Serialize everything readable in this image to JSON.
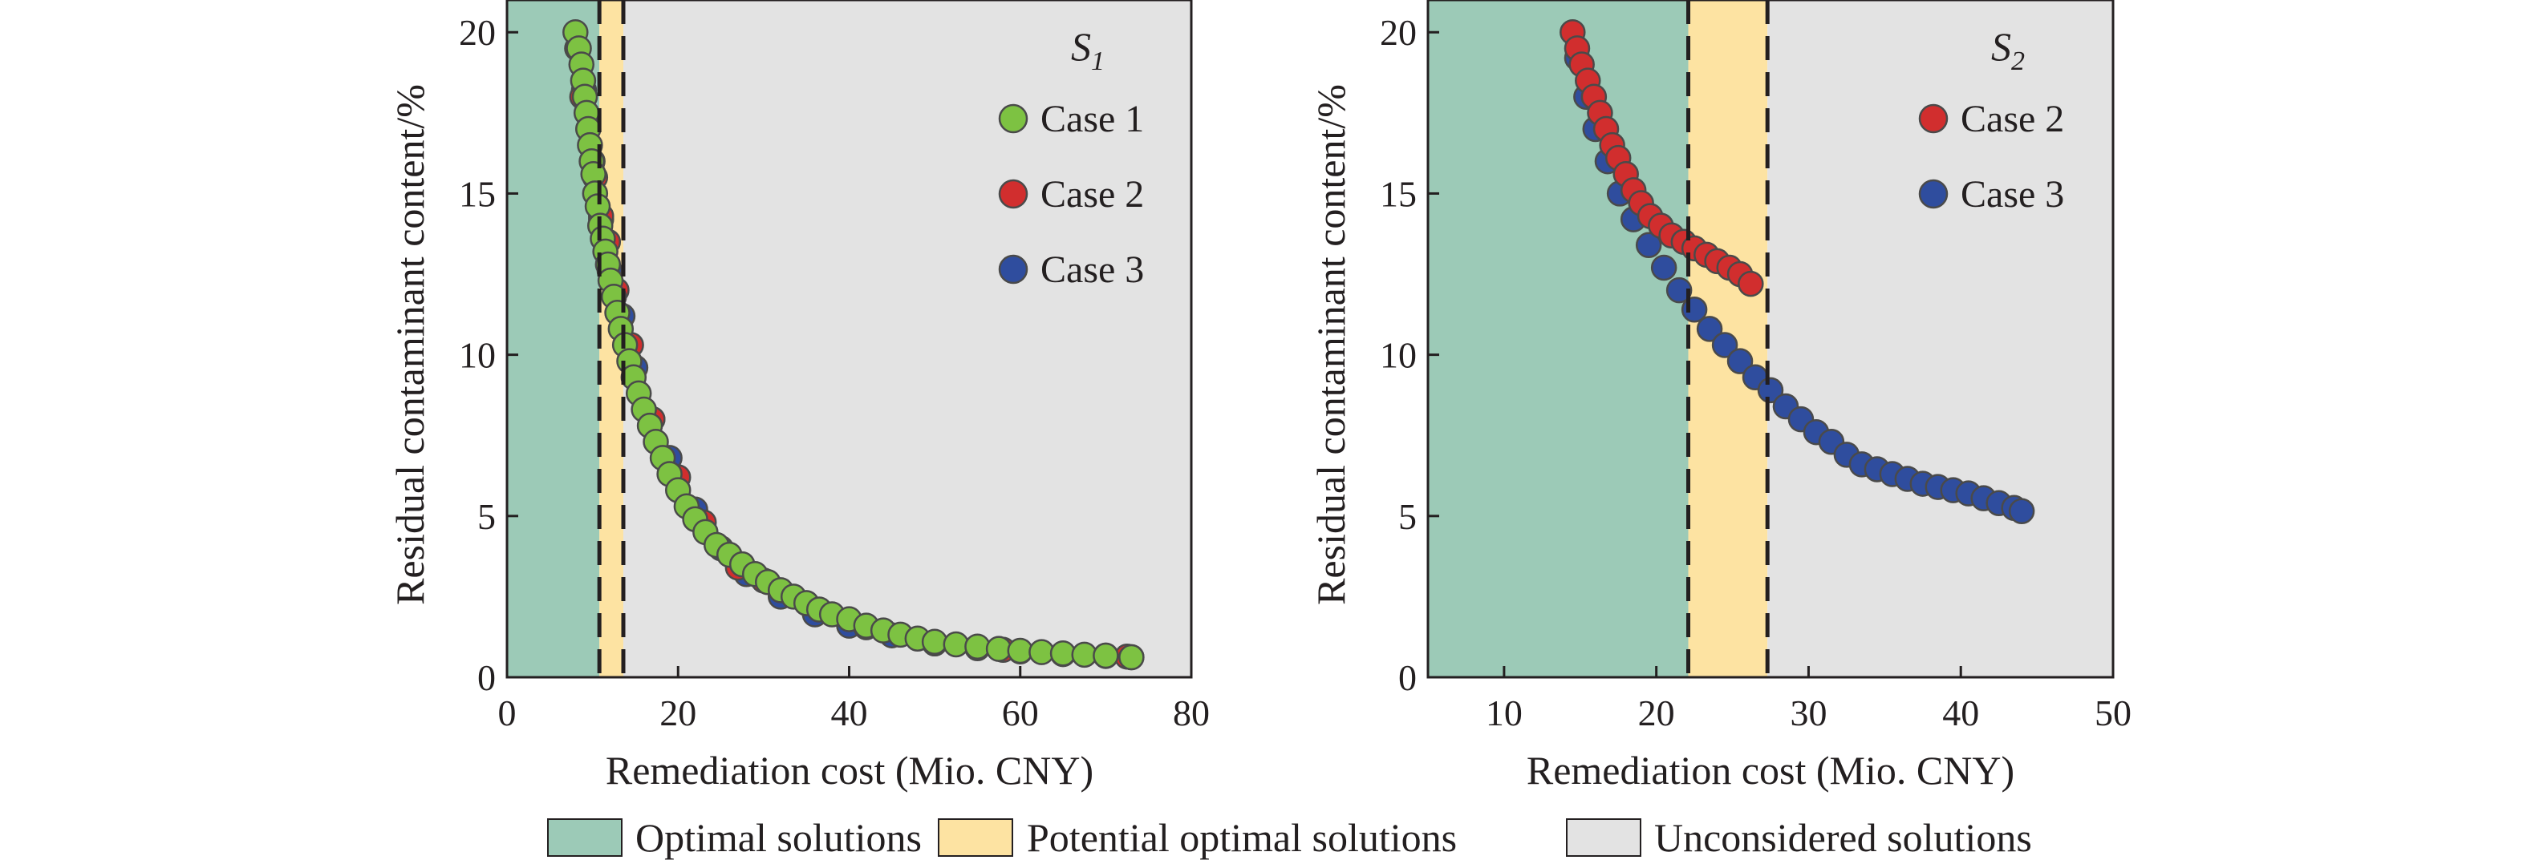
{
  "colors": {
    "optimal": "#9ccab7",
    "potential": "#fde3a2",
    "unconsidered": "#e3e3e3",
    "case1": "#7dc242",
    "case2": "#d12e2e",
    "case3": "#2f4d9e",
    "marker_edge": "#4a4a4a"
  },
  "bottom_legend": {
    "items": [
      {
        "label": "Optimal solutions",
        "color_key": "optimal"
      },
      {
        "label": "Potential optimal solutions",
        "color_key": "potential"
      },
      {
        "label": "Unconsidered solutions",
        "color_key": "unconsidered"
      }
    ]
  },
  "chart_data": [
    {
      "type": "scatter",
      "title": "S",
      "title_subscript": "1",
      "xlabel": "Remediation cost (Mio. CNY)",
      "ylabel": "Residual contaminant content/%",
      "xlim": [
        0,
        80
      ],
      "ylim": [
        0,
        21
      ],
      "xticks": [
        0,
        20,
        40,
        60,
        80
      ],
      "yticks": [
        0,
        5,
        10,
        15,
        20
      ],
      "regions": [
        {
          "name": "Optimal solutions",
          "x_range": [
            0,
            10.8
          ],
          "color_key": "optimal"
        },
        {
          "name": "Potential optimal solutions",
          "x_range": [
            10.8,
            13.6
          ],
          "color_key": "potential"
        },
        {
          "name": "Unconsidered solutions",
          "x_range": [
            13.6,
            80
          ],
          "color_key": "unconsidered"
        }
      ],
      "thresholds": [
        10.8,
        13.6
      ],
      "legend_position": "top-right",
      "legend": [
        "Case 1",
        "Case 2",
        "Case 3"
      ],
      "series": [
        {
          "name": "Case 3",
          "color_key": "case3",
          "points": [
            [
              9.0,
              18.2
            ],
            [
              10.0,
              16.0
            ],
            [
              11.0,
              14.2
            ],
            [
              12.0,
              12.6
            ],
            [
              13.5,
              11.2
            ],
            [
              15.0,
              9.6
            ],
            [
              17.0,
              8.0
            ],
            [
              19.0,
              6.8
            ],
            [
              22.0,
              5.2
            ],
            [
              25.0,
              4.0
            ],
            [
              28.0,
              3.2
            ],
            [
              32.0,
              2.5
            ],
            [
              36.0,
              1.95
            ],
            [
              40.0,
              1.6
            ],
            [
              45.0,
              1.3
            ],
            [
              50.0,
              1.05
            ],
            [
              55.0,
              0.9
            ],
            [
              60.0,
              0.8
            ],
            [
              65.0,
              0.72
            ],
            [
              70.0,
              0.66
            ],
            [
              73.0,
              0.62
            ]
          ]
        },
        {
          "name": "Case 2",
          "color_key": "case2",
          "points": [
            [
              8.2,
              19.5
            ],
            [
              8.8,
              18.0
            ],
            [
              9.5,
              17.0
            ],
            [
              10.3,
              15.5
            ],
            [
              11.0,
              14.3
            ],
            [
              11.8,
              13.5
            ],
            [
              12.8,
              12.0
            ],
            [
              14.5,
              10.3
            ],
            [
              17.0,
              8.0
            ],
            [
              20.0,
              6.2
            ],
            [
              23.0,
              4.8
            ],
            [
              27.0,
              3.4
            ],
            [
              30.0,
              3.0
            ],
            [
              35.0,
              2.3
            ],
            [
              42.0,
              1.55
            ],
            [
              50.0,
              1.05
            ],
            [
              58.0,
              0.85
            ],
            [
              65.0,
              0.72
            ],
            [
              70.0,
              0.67
            ],
            [
              72.5,
              0.64
            ]
          ]
        },
        {
          "name": "Case 1",
          "color_key": "case1",
          "points": [
            [
              8.0,
              20.0
            ],
            [
              8.4,
              19.5
            ],
            [
              8.7,
              19.0
            ],
            [
              8.9,
              18.5
            ],
            [
              9.1,
              18.0
            ],
            [
              9.3,
              17.5
            ],
            [
              9.5,
              17.0
            ],
            [
              9.7,
              16.5
            ],
            [
              9.9,
              16.0
            ],
            [
              10.1,
              15.6
            ],
            [
              10.3,
              15.0
            ],
            [
              10.6,
              14.6
            ],
            [
              10.9,
              14.0
            ],
            [
              11.2,
              13.6
            ],
            [
              11.5,
              13.2
            ],
            [
              11.8,
              12.8
            ],
            [
              12.1,
              12.3
            ],
            [
              12.5,
              11.8
            ],
            [
              12.9,
              11.3
            ],
            [
              13.3,
              10.8
            ],
            [
              13.8,
              10.3
            ],
            [
              14.3,
              9.8
            ],
            [
              14.8,
              9.3
            ],
            [
              15.4,
              8.8
            ],
            [
              16.0,
              8.3
            ],
            [
              16.7,
              7.8
            ],
            [
              17.4,
              7.3
            ],
            [
              18.2,
              6.8
            ],
            [
              19.0,
              6.3
            ],
            [
              20.0,
              5.8
            ],
            [
              21.0,
              5.3
            ],
            [
              22.0,
              4.9
            ],
            [
              23.2,
              4.5
            ],
            [
              24.5,
              4.1
            ],
            [
              26.0,
              3.8
            ],
            [
              27.5,
              3.5
            ],
            [
              29.0,
              3.2
            ],
            [
              30.5,
              2.95
            ],
            [
              32.0,
              2.7
            ],
            [
              33.5,
              2.5
            ],
            [
              35.0,
              2.3
            ],
            [
              36.5,
              2.1
            ],
            [
              38.0,
              1.95
            ],
            [
              40.0,
              1.8
            ],
            [
              42.0,
              1.6
            ],
            [
              44.0,
              1.45
            ],
            [
              46.0,
              1.32
            ],
            [
              48.0,
              1.2
            ],
            [
              50.0,
              1.1
            ],
            [
              52.5,
              1.02
            ],
            [
              55.0,
              0.95
            ],
            [
              57.5,
              0.88
            ],
            [
              60.0,
              0.82
            ],
            [
              62.5,
              0.78
            ],
            [
              65.0,
              0.74
            ],
            [
              67.5,
              0.7
            ],
            [
              70.0,
              0.67
            ],
            [
              73.0,
              0.62
            ]
          ]
        }
      ]
    },
    {
      "type": "scatter",
      "title": "S",
      "title_subscript": "2",
      "xlabel": "Remediation cost (Mio. CNY)",
      "ylabel": "Residual contaminant content/%",
      "xlim": [
        5,
        50
      ],
      "ylim": [
        0,
        21
      ],
      "xticks": [
        10,
        20,
        30,
        40,
        50
      ],
      "yticks": [
        0,
        5,
        10,
        15,
        20
      ],
      "regions": [
        {
          "name": "Optimal solutions",
          "x_range": [
            5,
            22.1
          ],
          "color_key": "optimal"
        },
        {
          "name": "Potential optimal solutions",
          "x_range": [
            22.1,
            27.3
          ],
          "color_key": "potential"
        },
        {
          "name": "Unconsidered solutions",
          "x_range": [
            27.3,
            50
          ],
          "color_key": "unconsidered"
        }
      ],
      "thresholds": [
        22.1,
        27.3
      ],
      "legend_position": "top-right",
      "legend": [
        "Case 2",
        "Case 3"
      ],
      "series": [
        {
          "name": "Case 3",
          "color_key": "case3",
          "points": [
            [
              14.8,
              19.2
            ],
            [
              15.4,
              18.0
            ],
            [
              16.0,
              17.0
            ],
            [
              16.8,
              16.0
            ],
            [
              17.6,
              15.0
            ],
            [
              18.5,
              14.2
            ],
            [
              19.5,
              13.4
            ],
            [
              20.5,
              12.7
            ],
            [
              21.5,
              12.0
            ],
            [
              22.5,
              11.4
            ],
            [
              23.5,
              10.8
            ],
            [
              24.5,
              10.3
            ],
            [
              25.5,
              9.8
            ],
            [
              26.5,
              9.3
            ],
            [
              27.5,
              8.9
            ],
            [
              28.5,
              8.4
            ],
            [
              29.5,
              8.0
            ],
            [
              30.5,
              7.6
            ],
            [
              31.5,
              7.3
            ],
            [
              32.5,
              6.9
            ],
            [
              33.5,
              6.6
            ],
            [
              34.5,
              6.45
            ],
            [
              35.5,
              6.3
            ],
            [
              36.5,
              6.15
            ],
            [
              37.5,
              6.0
            ],
            [
              38.5,
              5.9
            ],
            [
              39.5,
              5.8
            ],
            [
              40.5,
              5.7
            ],
            [
              41.5,
              5.55
            ],
            [
              42.5,
              5.4
            ],
            [
              43.5,
              5.25
            ],
            [
              44.0,
              5.15
            ]
          ]
        },
        {
          "name": "Case 2",
          "color_key": "case2",
          "points": [
            [
              14.5,
              20.0
            ],
            [
              14.8,
              19.5
            ],
            [
              15.1,
              19.0
            ],
            [
              15.5,
              18.5
            ],
            [
              15.9,
              18.0
            ],
            [
              16.3,
              17.5
            ],
            [
              16.7,
              17.0
            ],
            [
              17.1,
              16.5
            ],
            [
              17.5,
              16.1
            ],
            [
              18.0,
              15.6
            ],
            [
              18.5,
              15.1
            ],
            [
              19.0,
              14.7
            ],
            [
              19.6,
              14.3
            ],
            [
              20.3,
              14.0
            ],
            [
              21.0,
              13.7
            ],
            [
              21.8,
              13.5
            ],
            [
              22.5,
              13.3
            ],
            [
              23.3,
              13.1
            ],
            [
              24.0,
              12.9
            ],
            [
              24.8,
              12.7
            ],
            [
              25.5,
              12.5
            ],
            [
              26.2,
              12.2
            ]
          ]
        }
      ]
    }
  ]
}
